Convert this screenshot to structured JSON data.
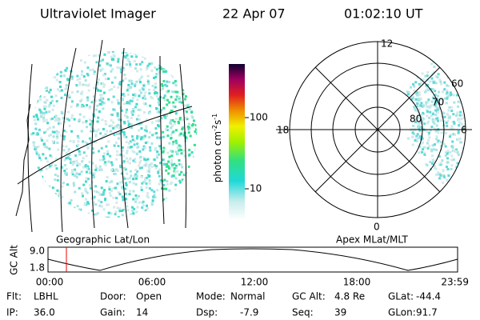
{
  "header": {
    "title": "Ultraviolet Imager",
    "date": "22 Apr 07",
    "time": "01:02:10 UT"
  },
  "colorbar": {
    "label": "photon cm",
    "exp1": "-2",
    "unit2": "s",
    "exp2": "-1",
    "ticks": [
      "100",
      "10"
    ]
  },
  "map_label": "Geographic Lat/Lon",
  "polar": {
    "label": "Apex MLat/MLT",
    "mlt": [
      "12",
      "18",
      "6",
      "0"
    ],
    "mlat": [
      "60",
      "70",
      "80"
    ]
  },
  "orbit": {
    "ylabel": "GC Alt",
    "yticks": [
      "9.0",
      "1.8"
    ],
    "xticks": [
      "00:00",
      "06:00",
      "12:00",
      "18:00",
      "23:59"
    ]
  },
  "footer": [
    [
      {
        "label": "Flt:",
        "value": "LBHL"
      },
      {
        "label": "Door:",
        "value": "Open"
      },
      {
        "label": "Mode:",
        "value": "Normal"
      },
      {
        "label": "GC Alt:",
        "value": "4.8 Re"
      },
      {
        "label": "GLat:",
        "value": "-44.4"
      }
    ],
    [
      {
        "label": "IP:",
        "value": "36.0"
      },
      {
        "label": "Gain:",
        "value": "14"
      },
      {
        "label": "Dsp:",
        "value": "-7.9"
      },
      {
        "label": "Seq:",
        "value": "39"
      },
      {
        "label": "GLon:",
        "value": "91.7"
      }
    ]
  ]
}
